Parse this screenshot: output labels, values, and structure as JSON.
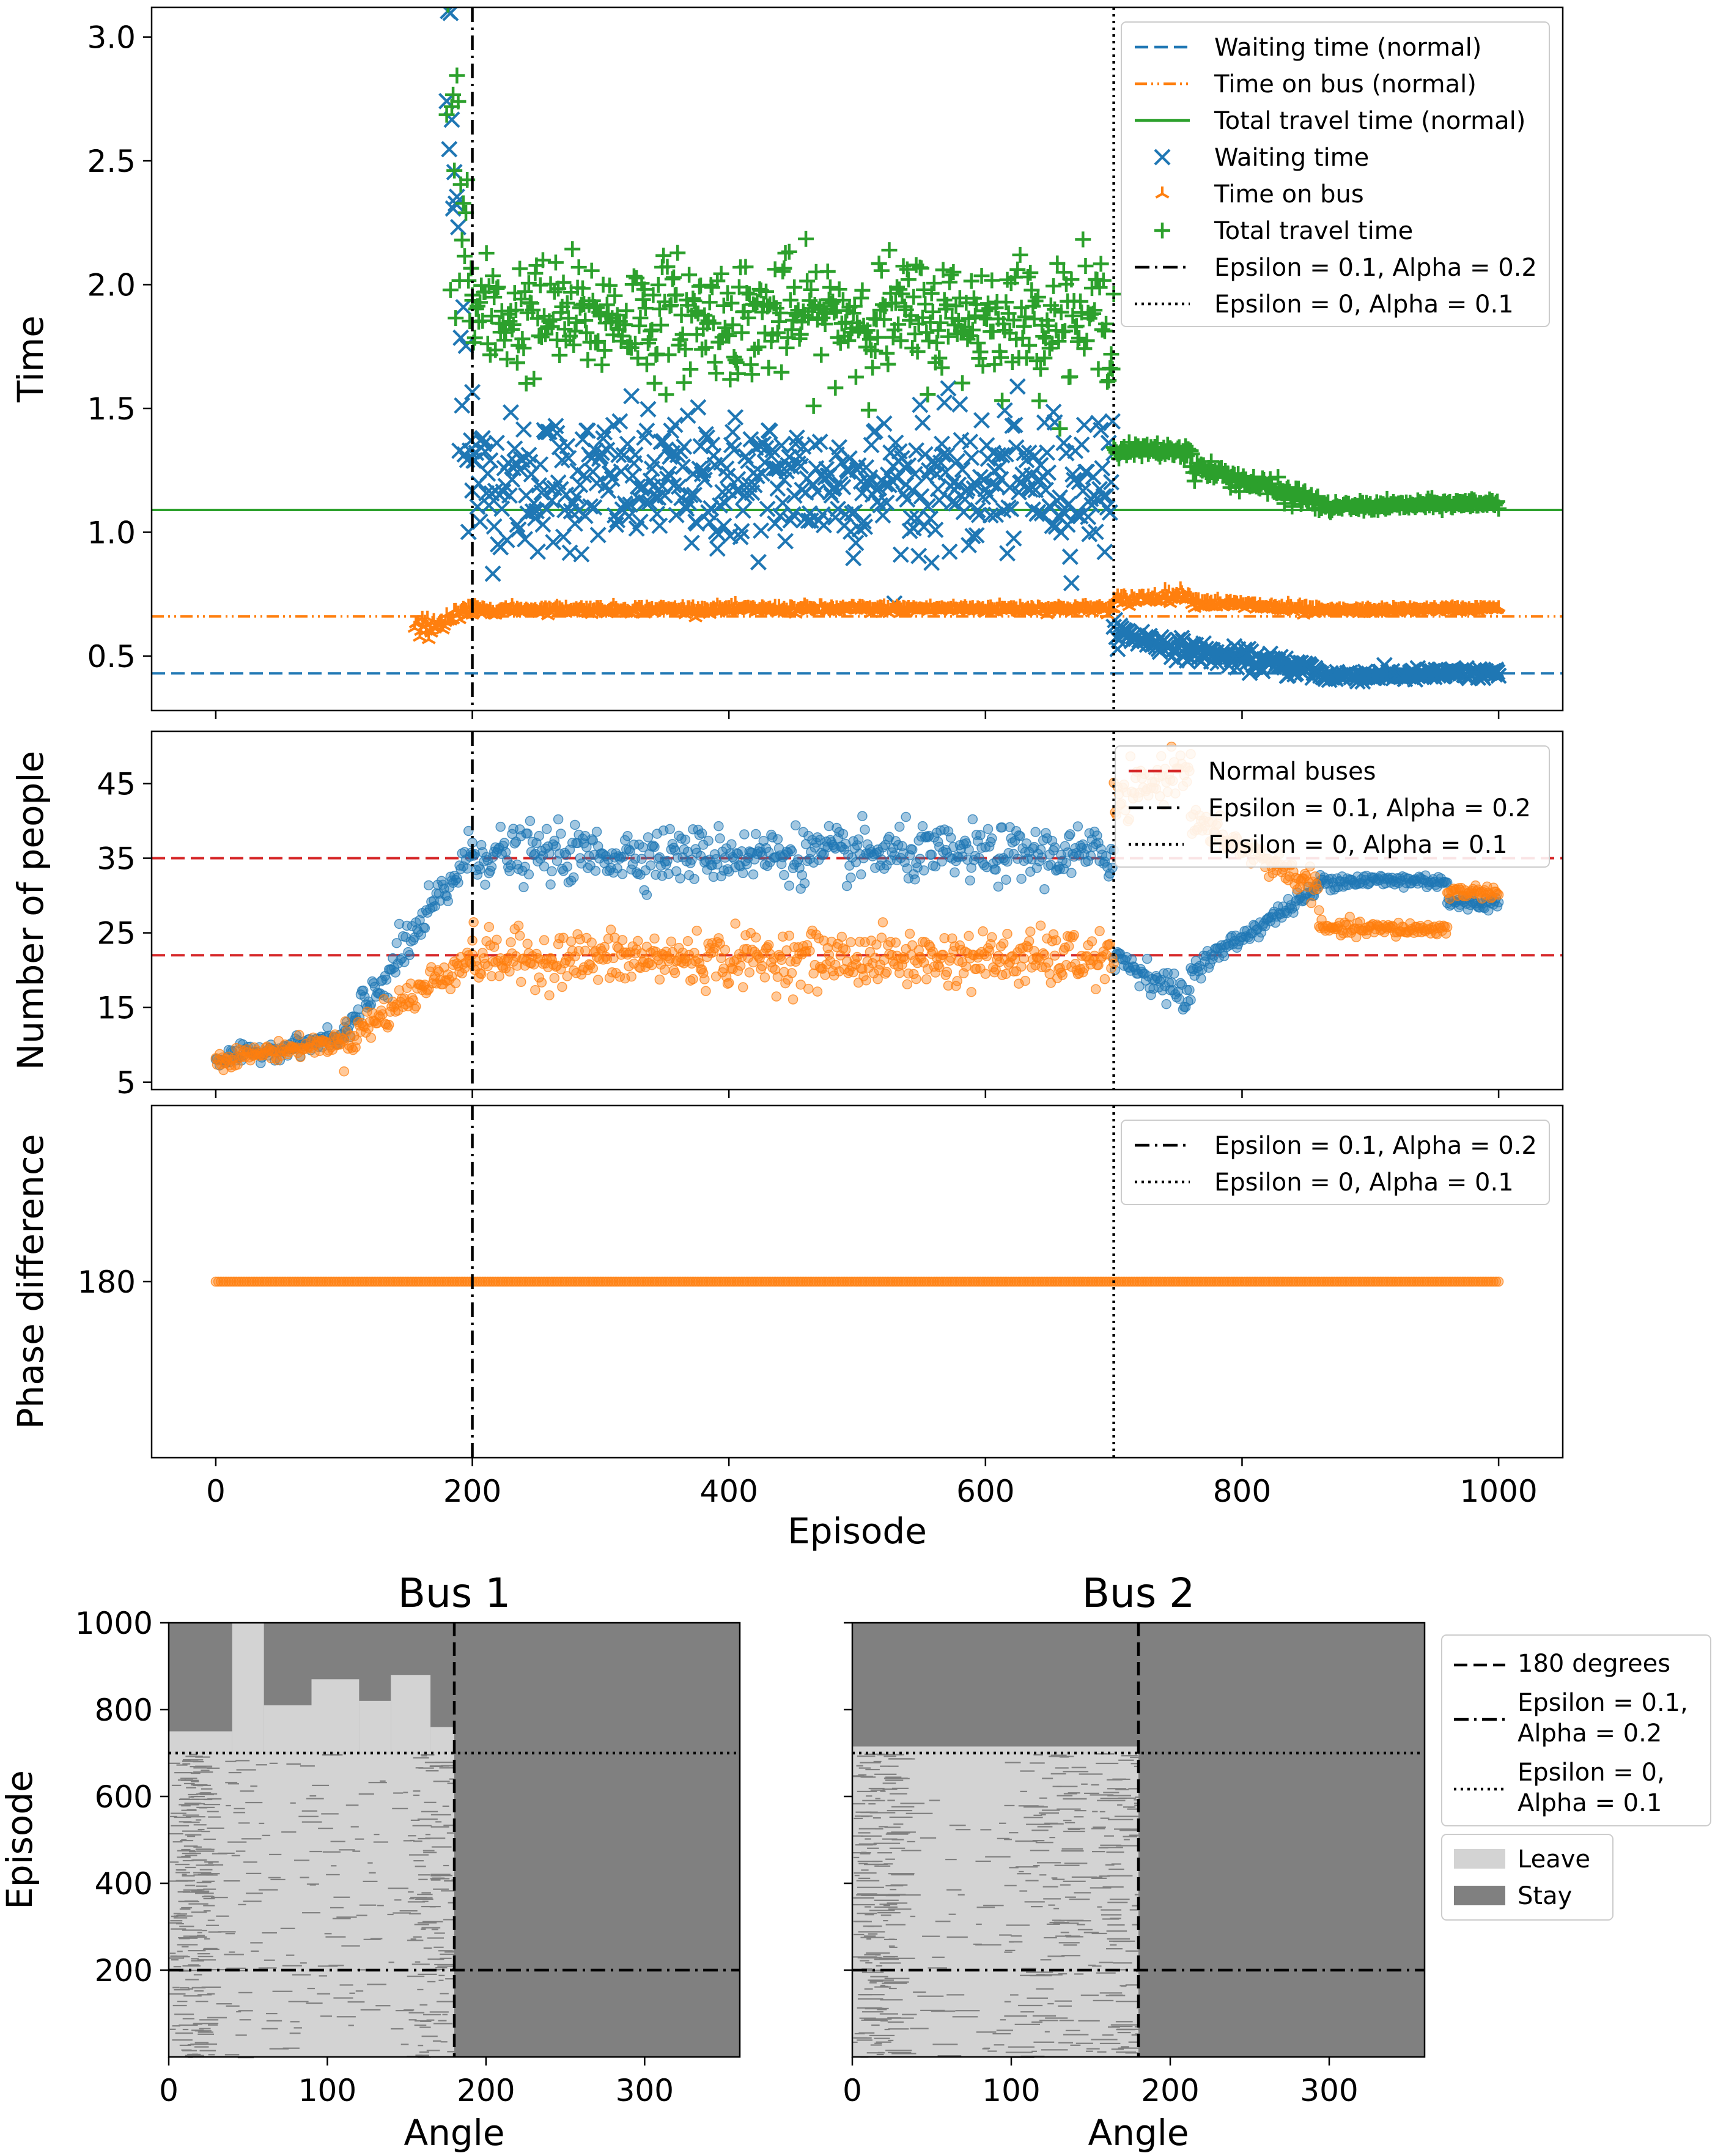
{
  "chart_data": [
    {
      "id": "time",
      "type": "scatter",
      "ylabel": "Time",
      "xlim": [
        -50,
        1050
      ],
      "ylim": [
        0.28,
        3.12
      ],
      "yticks": [
        0.5,
        1.0,
        1.5,
        2.0,
        2.5,
        3.0
      ],
      "ytick_labels": [
        "0.5",
        "1.0",
        "1.5",
        "2.0",
        "2.5",
        "3.0"
      ],
      "reference_lines": [
        {
          "name": "Waiting time (normal)",
          "y": 0.43,
          "color": "#1f77b4",
          "style": "dashed"
        },
        {
          "name": "Time on bus (normal)",
          "y": 0.66,
          "color": "#ff7f0e",
          "style": "dashdotdot"
        },
        {
          "name": "Total travel time (normal)",
          "y": 1.09,
          "color": "#2ca02c",
          "style": "solid"
        }
      ],
      "series": [
        {
          "name": "Waiting time",
          "marker": "x",
          "color": "#1f77b4",
          "segments": [
            {
              "x_range": [
                180,
                200
              ],
              "level": [
                2.85,
                1.25
              ],
              "spread": 0.35
            },
            {
              "x_range": [
                200,
                700
              ],
              "level": [
                1.2,
                1.2
              ],
              "spread": 0.14
            },
            {
              "x_range": [
                700,
                760
              ],
              "level": [
                0.6,
                0.52
              ],
              "spread": 0.02
            },
            {
              "x_range": [
                760,
                860
              ],
              "level": [
                0.52,
                0.44
              ],
              "spread": 0.02
            },
            {
              "x_range": [
                860,
                1000
              ],
              "level": [
                0.42,
                0.43
              ],
              "spread": 0.012
            }
          ]
        },
        {
          "name": "Time on bus",
          "marker": "tri",
          "color": "#ff7f0e",
          "segments": [
            {
              "x_range": [
                155,
                200
              ],
              "level": [
                0.6,
                0.68
              ],
              "spread": 0.02
            },
            {
              "x_range": [
                200,
                700
              ],
              "level": [
                0.685,
                0.69
              ],
              "spread": 0.008
            },
            {
              "x_range": [
                700,
                760
              ],
              "level": [
                0.72,
                0.75
              ],
              "spread": 0.012
            },
            {
              "x_range": [
                760,
                860
              ],
              "level": [
                0.72,
                0.68
              ],
              "spread": 0.01
            },
            {
              "x_range": [
                860,
                1000
              ],
              "level": [
                0.68,
                0.69
              ],
              "spread": 0.006
            }
          ]
        },
        {
          "name": "Total travel time",
          "marker": "plus",
          "color": "#2ca02c",
          "segments": [
            {
              "x_range": [
                180,
                200
              ],
              "level": [
                2.75,
                1.95
              ],
              "spread": 0.3
            },
            {
              "x_range": [
                200,
                700
              ],
              "level": [
                1.87,
                1.87
              ],
              "spread": 0.12
            },
            {
              "x_range": [
                700,
                760
              ],
              "level": [
                1.33,
                1.33
              ],
              "spread": 0.015
            },
            {
              "x_range": [
                760,
                860
              ],
              "level": [
                1.27,
                1.12
              ],
              "spread": 0.02
            },
            {
              "x_range": [
                860,
                1000
              ],
              "level": [
                1.1,
                1.12
              ],
              "spread": 0.01
            }
          ]
        }
      ],
      "legend": {
        "placement": "top-right",
        "entries": [
          {
            "label": "Waiting time (normal)",
            "kind": "line",
            "color": "#1f77b4",
            "style": "dashed"
          },
          {
            "label": "Time on bus (normal)",
            "kind": "line",
            "color": "#ff7f0e",
            "style": "dashdotdot"
          },
          {
            "label": "Total travel time (normal)",
            "kind": "line",
            "color": "#2ca02c",
            "style": "solid"
          },
          {
            "label": "Waiting time",
            "kind": "marker",
            "color": "#1f77b4",
            "marker": "x"
          },
          {
            "label": "Time on bus",
            "kind": "marker",
            "color": "#ff7f0e",
            "marker": "tri"
          },
          {
            "label": "Total travel time",
            "kind": "marker",
            "color": "#2ca02c",
            "marker": "plus"
          },
          {
            "label": "Epsilon = 0.1, Alpha = 0.2",
            "kind": "line",
            "color": "#000000",
            "style": "dashdot"
          },
          {
            "label": "Epsilon = 0, Alpha = 0.1",
            "kind": "line",
            "color": "#000000",
            "style": "dotted"
          }
        ]
      }
    },
    {
      "id": "people",
      "type": "scatter",
      "ylabel": "Number of people",
      "xlim": [
        -50,
        1050
      ],
      "ylim": [
        4,
        52
      ],
      "yticks": [
        5,
        15,
        25,
        35,
        45
      ],
      "ytick_labels": [
        "5",
        "15",
        "25",
        "35",
        "45"
      ],
      "reference_lines": [
        {
          "name": "Normal buses",
          "y": 35,
          "color": "#d62728",
          "style": "dashed"
        },
        {
          "name": "Normal buses",
          "y": 22,
          "color": "#d62728",
          "style": "dashed"
        }
      ],
      "series": [
        {
          "color": "#1f77b4",
          "segments": [
            {
              "x_range": [
                0,
                100
              ],
              "level": [
                8,
                11
              ],
              "spread": 0.6
            },
            {
              "x_range": [
                100,
                200
              ],
              "level": [
                11,
                36
              ],
              "spread": 1.5
            },
            {
              "x_range": [
                200,
                700
              ],
              "level": [
                35.5,
                35.5
              ],
              "spread": 1.8
            },
            {
              "x_range": [
                700,
                760
              ],
              "level": [
                22,
                16
              ],
              "spread": 1.0
            },
            {
              "x_range": [
                760,
                860
              ],
              "level": [
                20,
                31
              ],
              "spread": 0.6
            },
            {
              "x_range": [
                860,
                960
              ],
              "level": [
                32,
                32
              ],
              "spread": 0.5
            },
            {
              "x_range": [
                960,
                1000
              ],
              "level": [
                29,
                29
              ],
              "spread": 0.5
            }
          ]
        },
        {
          "color": "#ff7f0e",
          "segments": [
            {
              "x_range": [
                0,
                100
              ],
              "level": [
                8,
                10.5
              ],
              "spread": 0.6
            },
            {
              "x_range": [
                100,
                200
              ],
              "level": [
                10.5,
                22
              ],
              "spread": 1.2
            },
            {
              "x_range": [
                200,
                700
              ],
              "level": [
                21.5,
                21.5
              ],
              "spread": 1.8
            },
            {
              "x_range": [
                700,
                760
              ],
              "level": [
                42,
                48
              ],
              "spread": 1.5
            },
            {
              "x_range": [
                760,
                860
              ],
              "level": [
                40,
                31
              ],
              "spread": 1.0
            },
            {
              "x_range": [
                860,
                960
              ],
              "level": [
                25.5,
                25.5
              ],
              "spread": 0.5
            },
            {
              "x_range": [
                960,
                1000
              ],
              "level": [
                30.5,
                30.5
              ],
              "spread": 0.4
            }
          ]
        }
      ],
      "legend": {
        "placement": "top-right",
        "entries": [
          {
            "label": "Normal buses",
            "kind": "line",
            "color": "#d62728",
            "style": "dashed"
          },
          {
            "label": "Epsilon = 0.1, Alpha = 0.2",
            "kind": "line",
            "color": "#000000",
            "style": "dashdot"
          },
          {
            "label": "Epsilon = 0, Alpha = 0.1",
            "kind": "line",
            "color": "#000000",
            "style": "dotted"
          }
        ]
      }
    },
    {
      "id": "phase",
      "type": "scatter",
      "ylabel": "Phase difference",
      "xlabel": "Episode",
      "xlim": [
        -50,
        1050
      ],
      "ylim": [
        0,
        360
      ],
      "yticks": [
        180
      ],
      "ytick_labels": [
        "180"
      ],
      "xticks": [
        0,
        200,
        400,
        600,
        800,
        1000
      ],
      "xtick_labels": [
        "0",
        "200",
        "400",
        "600",
        "800",
        "1000"
      ],
      "series": [
        {
          "color": "#ff7f0e",
          "segments": [
            {
              "x_range": [
                0,
                1000
              ],
              "level": [
                180,
                180
              ],
              "spread": 0
            }
          ]
        }
      ],
      "legend": {
        "placement": "top-right",
        "entries": [
          {
            "label": "Epsilon = 0.1, Alpha = 0.2",
            "kind": "line",
            "color": "#000000",
            "style": "dashdot"
          },
          {
            "label": "Epsilon = 0, Alpha = 0.1",
            "kind": "line",
            "color": "#000000",
            "style": "dotted"
          }
        ]
      }
    },
    {
      "id": "bus1",
      "type": "heatmap",
      "title": "Bus 1",
      "xlabel": "Angle",
      "ylabel": "Episode",
      "xlim": [
        0,
        360
      ],
      "ylim": [
        0,
        1000
      ],
      "xticks": [
        0,
        100,
        200,
        300
      ],
      "xtick_labels": [
        "0",
        "100",
        "200",
        "300"
      ],
      "yticks": [
        200,
        400,
        600,
        800,
        1000
      ],
      "ytick_labels": [
        "200",
        "400",
        "600",
        "800",
        "1000"
      ],
      "colors": {
        "leave": "#d3d3d3",
        "stay": "#808080"
      },
      "leave_region": {
        "angle_range": [
          0,
          180
        ],
        "episode_range": [
          0,
          700
        ]
      },
      "leave_profile_after_700": [
        {
          "angle_range": [
            0,
            40
          ],
          "up_to_episode": 750
        },
        {
          "angle_range": [
            40,
            60
          ],
          "up_to_episode": 1000
        },
        {
          "angle_range": [
            60,
            90
          ],
          "up_to_episode": 810
        },
        {
          "angle_range": [
            90,
            120
          ],
          "up_to_episode": 870
        },
        {
          "angle_range": [
            120,
            140
          ],
          "up_to_episode": 820
        },
        {
          "angle_range": [
            140,
            165
          ],
          "up_to_episode": 880
        },
        {
          "angle_range": [
            165,
            180
          ],
          "up_to_episode": 760
        }
      ]
    },
    {
      "id": "bus2",
      "type": "heatmap",
      "title": "Bus 2",
      "xlabel": "Angle",
      "xlim": [
        0,
        360
      ],
      "ylim": [
        0,
        1000
      ],
      "xticks": [
        0,
        100,
        200,
        300
      ],
      "xtick_labels": [
        "0",
        "100",
        "200",
        "300"
      ],
      "yticks": [
        200,
        400,
        600,
        800,
        1000
      ],
      "ytick_labels": [
        "200",
        "400",
        "600",
        "800",
        "1000"
      ],
      "colors": {
        "leave": "#d3d3d3",
        "stay": "#808080"
      },
      "leave_region": {
        "angle_range": [
          0,
          180
        ],
        "episode_range": [
          0,
          700
        ]
      },
      "leave_profile_after_700": [
        {
          "angle_range": [
            0,
            180
          ],
          "up_to_episode": 715
        }
      ]
    }
  ],
  "markers": {
    "vertical_lines": [
      {
        "x": 200,
        "style": "dashdot",
        "color": "#000000"
      },
      {
        "x": 700,
        "style": "dotted",
        "color": "#000000"
      }
    ],
    "heatmap_lines": [
      {
        "axis": "x",
        "value": 180,
        "style": "dashed",
        "color": "#000000"
      },
      {
        "axis": "y",
        "value": 200,
        "style": "dashdot",
        "color": "#000000"
      },
      {
        "axis": "y",
        "value": 700,
        "style": "dotted",
        "color": "#000000"
      }
    ]
  },
  "heatmap_legend": {
    "lines": [
      {
        "label_lines": [
          "180 degrees"
        ],
        "style": "dashed"
      },
      {
        "label_lines": [
          "Epsilon = 0.1,",
          "Alpha = 0.2"
        ],
        "style": "dashdot"
      },
      {
        "label_lines": [
          "Epsilon = 0,",
          "Alpha = 0.1"
        ],
        "style": "dotted"
      }
    ],
    "patches": [
      {
        "label": "Leave",
        "color": "#d3d3d3"
      },
      {
        "label": "Stay",
        "color": "#808080"
      }
    ]
  }
}
